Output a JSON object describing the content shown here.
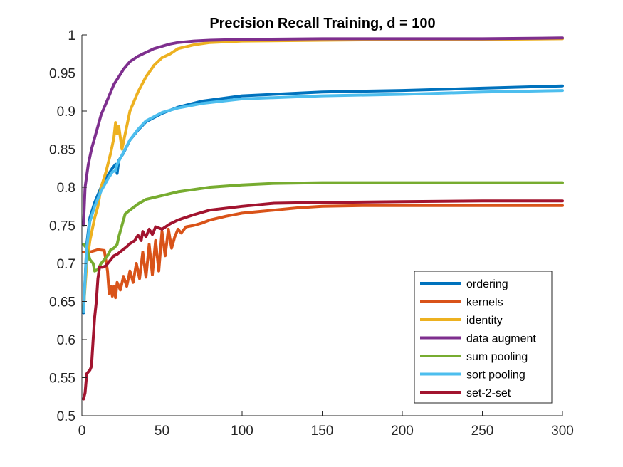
{
  "chart_data": {
    "type": "line",
    "title": "Precision Recall Training, d = 100",
    "xlabel": "",
    "ylabel": "",
    "xlim": [
      0,
      300
    ],
    "ylim": [
      0.5,
      1
    ],
    "xticks": [
      0,
      50,
      100,
      150,
      200,
      250,
      300
    ],
    "yticks": [
      0.5,
      0.55,
      0.6,
      0.65,
      0.7,
      0.75,
      0.8,
      0.85,
      0.9,
      0.95,
      1
    ],
    "x_tick_labels": [
      "0",
      "50",
      "100",
      "150",
      "200",
      "250",
      "300"
    ],
    "y_tick_labels": [
      "0.5",
      "0.55",
      "0.6",
      "0.65",
      "0.7",
      "0.75",
      "0.8",
      "0.85",
      "0.9",
      "0.95",
      "1"
    ],
    "grid": false,
    "legend_position": "bottom-right",
    "series": [
      {
        "name": "ordering",
        "color": "#0072BD",
        "points": [
          [
            1,
            0.635
          ],
          [
            3,
            0.725
          ],
          [
            5,
            0.76
          ],
          [
            8,
            0.78
          ],
          [
            12,
            0.8
          ],
          [
            16,
            0.815
          ],
          [
            19,
            0.825
          ],
          [
            21,
            0.83
          ],
          [
            22,
            0.818
          ],
          [
            23,
            0.835
          ],
          [
            26,
            0.845
          ],
          [
            30,
            0.862
          ],
          [
            35,
            0.875
          ],
          [
            40,
            0.886
          ],
          [
            50,
            0.897
          ],
          [
            60,
            0.905
          ],
          [
            75,
            0.913
          ],
          [
            100,
            0.92
          ],
          [
            150,
            0.925
          ],
          [
            200,
            0.927
          ],
          [
            250,
            0.93
          ],
          [
            300,
            0.933
          ]
        ]
      },
      {
        "name": "kernels",
        "color": "#D95319",
        "points": [
          [
            1,
            0.715
          ],
          [
            5,
            0.715
          ],
          [
            10,
            0.718
          ],
          [
            14,
            0.717
          ],
          [
            16,
            0.69
          ],
          [
            17,
            0.66
          ],
          [
            18,
            0.67
          ],
          [
            19,
            0.657
          ],
          [
            20,
            0.67
          ],
          [
            21,
            0.655
          ],
          [
            22,
            0.675
          ],
          [
            24,
            0.665
          ],
          [
            26,
            0.683
          ],
          [
            28,
            0.67
          ],
          [
            30,
            0.69
          ],
          [
            32,
            0.675
          ],
          [
            34,
            0.7
          ],
          [
            36,
            0.68
          ],
          [
            38,
            0.715
          ],
          [
            40,
            0.682
          ],
          [
            42,
            0.725
          ],
          [
            44,
            0.685
          ],
          [
            46,
            0.73
          ],
          [
            48,
            0.69
          ],
          [
            50,
            0.742
          ],
          [
            52,
            0.71
          ],
          [
            54,
            0.745
          ],
          [
            56,
            0.72
          ],
          [
            58,
            0.735
          ],
          [
            60,
            0.745
          ],
          [
            62,
            0.74
          ],
          [
            65,
            0.748
          ],
          [
            70,
            0.75
          ],
          [
            75,
            0.753
          ],
          [
            80,
            0.757
          ],
          [
            90,
            0.762
          ],
          [
            100,
            0.766
          ],
          [
            110,
            0.768
          ],
          [
            120,
            0.77
          ],
          [
            135,
            0.773
          ],
          [
            150,
            0.775
          ],
          [
            175,
            0.776
          ],
          [
            200,
            0.776
          ],
          [
            250,
            0.776
          ],
          [
            300,
            0.776
          ]
        ]
      },
      {
        "name": "identity",
        "color": "#EDB120",
        "points": [
          [
            1,
            0.64
          ],
          [
            3,
            0.7
          ],
          [
            5,
            0.73
          ],
          [
            8,
            0.76
          ],
          [
            10,
            0.775
          ],
          [
            12,
            0.8
          ],
          [
            15,
            0.82
          ],
          [
            18,
            0.845
          ],
          [
            20,
            0.865
          ],
          [
            21,
            0.885
          ],
          [
            22,
            0.87
          ],
          [
            23,
            0.88
          ],
          [
            25,
            0.85
          ],
          [
            27,
            0.87
          ],
          [
            30,
            0.9
          ],
          [
            35,
            0.925
          ],
          [
            40,
            0.945
          ],
          [
            45,
            0.96
          ],
          [
            50,
            0.97
          ],
          [
            55,
            0.975
          ],
          [
            60,
            0.982
          ],
          [
            70,
            0.987
          ],
          [
            80,
            0.99
          ],
          [
            100,
            0.992
          ],
          [
            150,
            0.993
          ],
          [
            200,
            0.994
          ],
          [
            250,
            0.994
          ],
          [
            300,
            0.995
          ]
        ]
      },
      {
        "name": "data augment",
        "color": "#7E2F8E",
        "points": [
          [
            1,
            0.75
          ],
          [
            2,
            0.8
          ],
          [
            4,
            0.83
          ],
          [
            6,
            0.85
          ],
          [
            8,
            0.865
          ],
          [
            10,
            0.88
          ],
          [
            12,
            0.895
          ],
          [
            15,
            0.91
          ],
          [
            18,
            0.925
          ],
          [
            20,
            0.935
          ],
          [
            23,
            0.945
          ],
          [
            26,
            0.955
          ],
          [
            30,
            0.965
          ],
          [
            35,
            0.972
          ],
          [
            40,
            0.977
          ],
          [
            45,
            0.982
          ],
          [
            50,
            0.985
          ],
          [
            55,
            0.988
          ],
          [
            60,
            0.99
          ],
          [
            70,
            0.992
          ],
          [
            80,
            0.993
          ],
          [
            100,
            0.994
          ],
          [
            150,
            0.995
          ],
          [
            200,
            0.995
          ],
          [
            250,
            0.995
          ],
          [
            300,
            0.996
          ]
        ]
      },
      {
        "name": "sum pooling",
        "color": "#77AC30",
        "points": [
          [
            1,
            0.725
          ],
          [
            3,
            0.72
          ],
          [
            5,
            0.705
          ],
          [
            7,
            0.7
          ],
          [
            8,
            0.69
          ],
          [
            10,
            0.692
          ],
          [
            12,
            0.7
          ],
          [
            14,
            0.705
          ],
          [
            16,
            0.71
          ],
          [
            18,
            0.718
          ],
          [
            20,
            0.72
          ],
          [
            22,
            0.725
          ],
          [
            23,
            0.735
          ],
          [
            25,
            0.75
          ],
          [
            27,
            0.765
          ],
          [
            30,
            0.77
          ],
          [
            35,
            0.778
          ],
          [
            40,
            0.784
          ],
          [
            50,
            0.789
          ],
          [
            60,
            0.794
          ],
          [
            70,
            0.797
          ],
          [
            80,
            0.8
          ],
          [
            100,
            0.803
          ],
          [
            120,
            0.805
          ],
          [
            150,
            0.806
          ],
          [
            200,
            0.806
          ],
          [
            250,
            0.806
          ],
          [
            300,
            0.806
          ]
        ]
      },
      {
        "name": "sort pooling",
        "color": "#4DBEEE",
        "points": [
          [
            1,
            0.637
          ],
          [
            3,
            0.72
          ],
          [
            5,
            0.755
          ],
          [
            8,
            0.775
          ],
          [
            12,
            0.795
          ],
          [
            16,
            0.81
          ],
          [
            19,
            0.82
          ],
          [
            21,
            0.822
          ],
          [
            22,
            0.83
          ],
          [
            24,
            0.838
          ],
          [
            27,
            0.85
          ],
          [
            30,
            0.862
          ],
          [
            35,
            0.876
          ],
          [
            40,
            0.887
          ],
          [
            50,
            0.898
          ],
          [
            60,
            0.904
          ],
          [
            75,
            0.91
          ],
          [
            100,
            0.916
          ],
          [
            150,
            0.92
          ],
          [
            200,
            0.922
          ],
          [
            250,
            0.925
          ],
          [
            300,
            0.927
          ]
        ]
      },
      {
        "name": "set-2-set",
        "color": "#A2142F",
        "points": [
          [
            1,
            0.522
          ],
          [
            2,
            0.53
          ],
          [
            3,
            0.555
          ],
          [
            5,
            0.56
          ],
          [
            6,
            0.565
          ],
          [
            7,
            0.6
          ],
          [
            8,
            0.63
          ],
          [
            9,
            0.65
          ],
          [
            10,
            0.68
          ],
          [
            11,
            0.695
          ],
          [
            13,
            0.695
          ],
          [
            15,
            0.697
          ],
          [
            18,
            0.705
          ],
          [
            20,
            0.71
          ],
          [
            22,
            0.712
          ],
          [
            25,
            0.717
          ],
          [
            28,
            0.722
          ],
          [
            30,
            0.726
          ],
          [
            33,
            0.73
          ],
          [
            35,
            0.737
          ],
          [
            37,
            0.73
          ],
          [
            38,
            0.742
          ],
          [
            40,
            0.735
          ],
          [
            42,
            0.745
          ],
          [
            44,
            0.738
          ],
          [
            46,
            0.748
          ],
          [
            50,
            0.745
          ],
          [
            55,
            0.752
          ],
          [
            60,
            0.757
          ],
          [
            70,
            0.764
          ],
          [
            80,
            0.77
          ],
          [
            100,
            0.775
          ],
          [
            120,
            0.779
          ],
          [
            150,
            0.78
          ],
          [
            200,
            0.781
          ],
          [
            250,
            0.782
          ],
          [
            300,
            0.782
          ]
        ]
      }
    ]
  }
}
